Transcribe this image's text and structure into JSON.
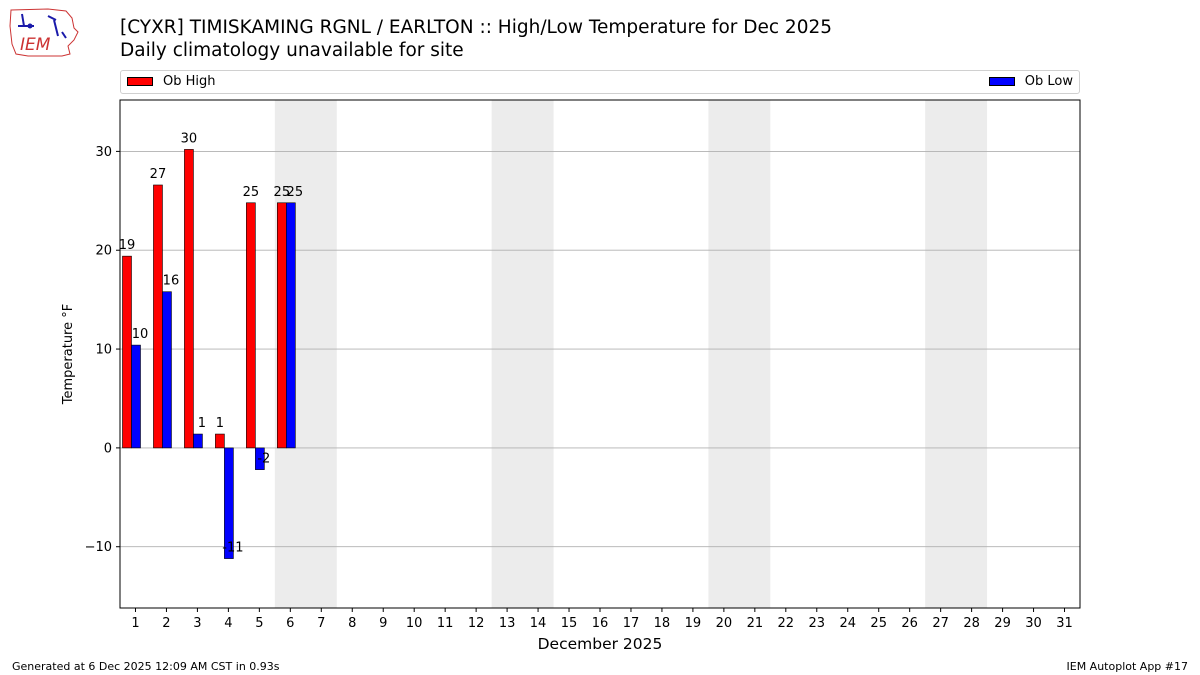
{
  "logo": {
    "text": "IEM",
    "color": "#cc3333",
    "accent": "#1a1aaa"
  },
  "title": "[CYXR] TIMISKAMING RGNL / EARLTON :: High/Low Temperature for Dec 2025",
  "subtitle": "Daily climatology unavailable for site",
  "legend": [
    {
      "label": "Ob High",
      "color": "#ff0000"
    },
    {
      "label": "Ob Low",
      "color": "#0000ff"
    }
  ],
  "footer": {
    "left": "Generated at 6 Dec 2025 12:09 AM CST in 0.93s",
    "right": "IEM Autoplot App #17"
  },
  "chart_data": {
    "type": "bar",
    "xlabel": "December 2025",
    "ylabel": "Temperature °F",
    "ylim": [
      -16.2,
      35.2
    ],
    "xlim": [
      0.5,
      31.5
    ],
    "yticks": [
      -10,
      0,
      10,
      20,
      30
    ],
    "grid": "horizontal",
    "legend_position": "top",
    "categories": [
      "1",
      "2",
      "3",
      "4",
      "5",
      "6",
      "7",
      "8",
      "9",
      "10",
      "11",
      "12",
      "13",
      "14",
      "15",
      "16",
      "17",
      "18",
      "19",
      "20",
      "21",
      "22",
      "23",
      "24",
      "25",
      "26",
      "27",
      "28",
      "29",
      "30",
      "31"
    ],
    "series": [
      {
        "name": "Ob High",
        "color": "#ff0000",
        "x": [
          1,
          2,
          3,
          4,
          5,
          6
        ],
        "values": [
          19.4,
          26.6,
          30.2,
          1.4,
          24.8,
          24.8
        ],
        "labels": [
          "19",
          "27",
          "30",
          "1",
          "25",
          "25"
        ]
      },
      {
        "name": "Ob Low",
        "color": "#0000ff",
        "x": [
          1,
          2,
          3,
          4,
          5,
          6
        ],
        "values": [
          10.4,
          15.8,
          1.4,
          -11.2,
          -2.2,
          24.8
        ],
        "labels": [
          "10",
          "16",
          "1",
          "-11",
          "-2",
          "25"
        ]
      }
    ],
    "weekend_shading": [
      [
        6,
        7
      ],
      [
        13,
        14
      ],
      [
        20,
        21
      ],
      [
        27,
        28
      ]
    ],
    "shade_color": "#ececec"
  }
}
